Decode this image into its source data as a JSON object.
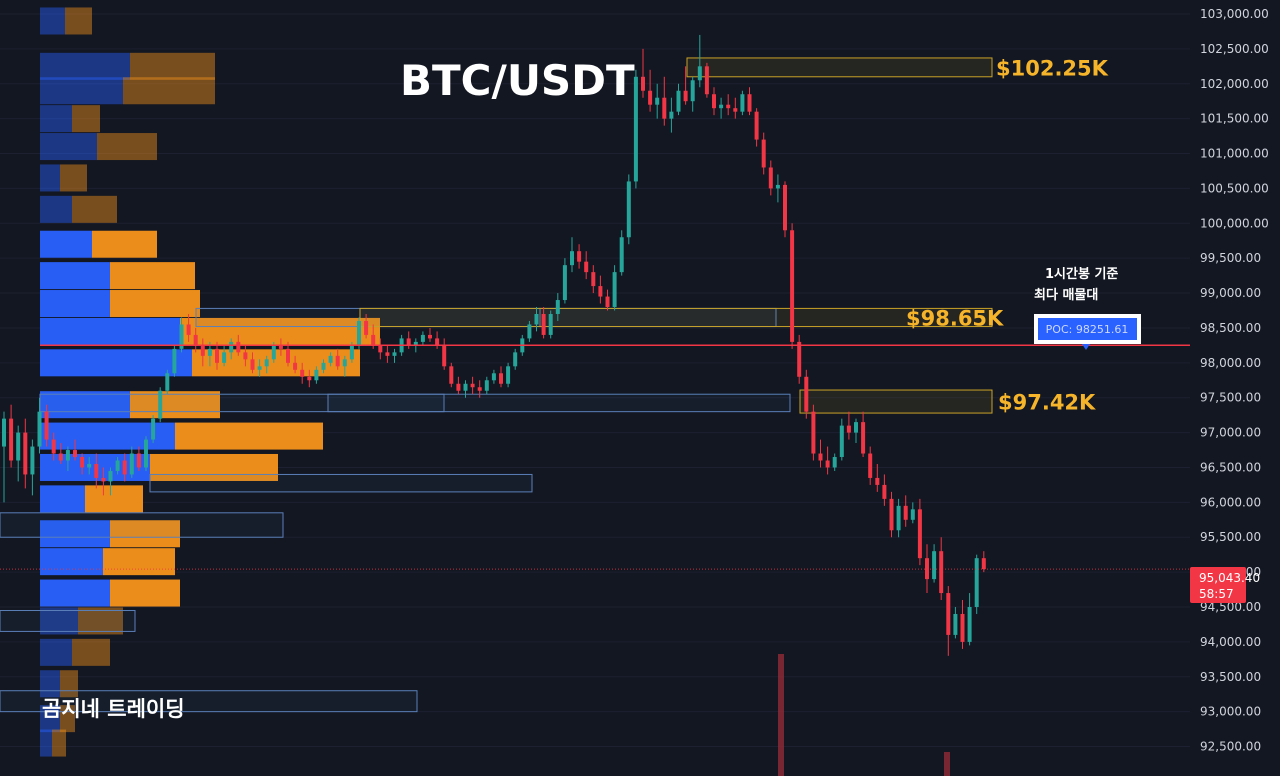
{
  "chart_data": {
    "type": "candlestick",
    "title": "BTC/USDT",
    "watermark": "곰지네 트레이딩",
    "price_axis": {
      "ylim": [
        92350,
        103000
      ],
      "ticks": [
        103000,
        102500,
        102000,
        101500,
        101000,
        100500,
        100000,
        99500,
        99000,
        98500,
        98000,
        97500,
        97000,
        96500,
        96000,
        95500,
        95000,
        94500,
        94000,
        93500,
        93000,
        92500
      ],
      "tick_labels": [
        "103,000.00",
        "102,500.00",
        "102,000.00",
        "101,500.00",
        "101,000.00",
        "100,500.00",
        "100,000.00",
        "99,500.00",
        "99,000.00",
        "98,500.00",
        "98,000.00",
        "97,500.00",
        "97,000.00",
        "96,500.00",
        "96,000.00",
        "95,500.00",
        "95,000.00",
        "94,500.00",
        "94,000.00",
        "93,500.00",
        "93,000.00",
        "92,500.00"
      ]
    },
    "last_price": {
      "value": 95043.4,
      "label": "95,043.40",
      "countdown": "58:57",
      "color": "#f23645"
    },
    "poc": {
      "value": 98251.61,
      "label": "POC: 98251.61",
      "note_line1": "1시간봉 기준",
      "note_line2": "최다 매물대",
      "color": "#f23645"
    },
    "price_levels": [
      {
        "name": "resistance-top",
        "label": "$102.25K",
        "low": 102100,
        "high": 102370
      },
      {
        "name": "resistance-mid",
        "label": "$98.65K",
        "low": 98520,
        "high": 98780
      },
      {
        "name": "support",
        "label": "$97.42K",
        "low": 97280,
        "high": 97610
      }
    ],
    "colors": {
      "up": "#26a69a",
      "down": "#f23645",
      "level_box": "#c9a227",
      "vp_up": "#2962ff",
      "vp_down": "#f7931a",
      "zone_box": "#5a7fb8",
      "poc_label_bg": "#2962ff"
    },
    "candles": [
      [
        96800,
        97300,
        96000,
        97200
      ],
      [
        97200,
        97400,
        96500,
        96600
      ],
      [
        96600,
        97100,
        96300,
        97000
      ],
      [
        97000,
        97200,
        96200,
        96400
      ],
      [
        96400,
        96900,
        96100,
        96800
      ],
      [
        96800,
        97500,
        96700,
        97300
      ],
      [
        97300,
        97400,
        96800,
        96900
      ],
      [
        96900,
        97000,
        96600,
        96700
      ],
      [
        96700,
        96850,
        96550,
        96600
      ],
      [
        96600,
        96800,
        96450,
        96750
      ],
      [
        96750,
        96900,
        96600,
        96650
      ],
      [
        96650,
        96700,
        96400,
        96500
      ],
      [
        96500,
        96650,
        96400,
        96550
      ],
      [
        96550,
        96700,
        96200,
        96350
      ],
      [
        96350,
        96500,
        96100,
        96300
      ],
      [
        96300,
        96500,
        96100,
        96450
      ],
      [
        96450,
        96650,
        96400,
        96600
      ],
      [
        96600,
        96700,
        96300,
        96400
      ],
      [
        96400,
        96800,
        96350,
        96700
      ],
      [
        96700,
        96800,
        96450,
        96500
      ],
      [
        96500,
        96950,
        96450,
        96900
      ],
      [
        96900,
        97250,
        96850,
        97200
      ],
      [
        97200,
        97650,
        97150,
        97600
      ],
      [
        97600,
        97900,
        97550,
        97850
      ],
      [
        97850,
        98250,
        97800,
        98200
      ],
      [
        98200,
        98650,
        98150,
        98550
      ],
      [
        98550,
        98700,
        98300,
        98400
      ],
      [
        98400,
        98500,
        98150,
        98250
      ],
      [
        98250,
        98350,
        97950,
        98100
      ],
      [
        98100,
        98300,
        97950,
        98200
      ],
      [
        98200,
        98300,
        97900,
        98000
      ],
      [
        98000,
        98250,
        97950,
        98150
      ],
      [
        98150,
        98350,
        98050,
        98300
      ],
      [
        98300,
        98400,
        98100,
        98150
      ],
      [
        98150,
        98250,
        97950,
        98050
      ],
      [
        98050,
        98150,
        97850,
        97900
      ],
      [
        97900,
        98050,
        97800,
        97950
      ],
      [
        97950,
        98100,
        97850,
        98050
      ],
      [
        98050,
        98300,
        98000,
        98250
      ],
      [
        98250,
        98350,
        98100,
        98200
      ],
      [
        98200,
        98300,
        97950,
        98000
      ],
      [
        98000,
        98100,
        97850,
        97900
      ],
      [
        97900,
        98000,
        97700,
        97800
      ],
      [
        97800,
        97900,
        97650,
        97750
      ],
      [
        97750,
        97950,
        97700,
        97900
      ],
      [
        97900,
        98050,
        97850,
        98000
      ],
      [
        98000,
        98150,
        97950,
        98100
      ],
      [
        98100,
        98200,
        97900,
        97950
      ],
      [
        97950,
        98100,
        97800,
        98050
      ],
      [
        98050,
        98300,
        98000,
        98250
      ],
      [
        98250,
        98650,
        98200,
        98600
      ],
      [
        98600,
        98700,
        98350,
        98400
      ],
      [
        98400,
        98550,
        98200,
        98250
      ],
      [
        98250,
        98350,
        98050,
        98150
      ],
      [
        98150,
        98250,
        98000,
        98100
      ],
      [
        98100,
        98200,
        98000,
        98150
      ],
      [
        98150,
        98400,
        98100,
        98350
      ],
      [
        98350,
        98450,
        98200,
        98250
      ],
      [
        98250,
        98350,
        98150,
        98300
      ],
      [
        98300,
        98450,
        98250,
        98400
      ],
      [
        98400,
        98500,
        98300,
        98350
      ],
      [
        98350,
        98450,
        98200,
        98250
      ],
      [
        98250,
        98350,
        97900,
        97950
      ],
      [
        97950,
        98000,
        97650,
        97700
      ],
      [
        97700,
        97800,
        97550,
        97600
      ],
      [
        97600,
        97750,
        97500,
        97700
      ],
      [
        97700,
        97800,
        97550,
        97650
      ],
      [
        97650,
        97750,
        97500,
        97600
      ],
      [
        97600,
        97800,
        97550,
        97750
      ],
      [
        97750,
        97900,
        97700,
        97850
      ],
      [
        97850,
        97950,
        97650,
        97700
      ],
      [
        97700,
        98000,
        97650,
        97950
      ],
      [
        97950,
        98200,
        97900,
        98150
      ],
      [
        98150,
        98400,
        98100,
        98350
      ],
      [
        98350,
        98600,
        98300,
        98550
      ],
      [
        98550,
        98800,
        98450,
        98700
      ],
      [
        98700,
        98800,
        98350,
        98400
      ],
      [
        98400,
        98750,
        98350,
        98700
      ],
      [
        98700,
        99000,
        98600,
        98900
      ],
      [
        98900,
        99500,
        98850,
        99400
      ],
      [
        99400,
        99800,
        99300,
        99600
      ],
      [
        99600,
        99700,
        99350,
        99450
      ],
      [
        99450,
        99600,
        99200,
        99300
      ],
      [
        99300,
        99400,
        99000,
        99100
      ],
      [
        99100,
        99250,
        98850,
        98950
      ],
      [
        98950,
        99050,
        98750,
        98800
      ],
      [
        98800,
        99400,
        98750,
        99300
      ],
      [
        99300,
        99900,
        99250,
        99800
      ],
      [
        99800,
        100700,
        99700,
        100600
      ],
      [
        100600,
        102200,
        100500,
        102100
      ],
      [
        102100,
        102500,
        101800,
        101900
      ],
      [
        101900,
        102200,
        101600,
        101700
      ],
      [
        101700,
        102000,
        101500,
        101800
      ],
      [
        101800,
        102100,
        101400,
        101500
      ],
      [
        101500,
        101800,
        101300,
        101600
      ],
      [
        101600,
        102000,
        101550,
        101900
      ],
      [
        101900,
        102250,
        101700,
        101750
      ],
      [
        101750,
        102100,
        101600,
        102050
      ],
      [
        102050,
        102700,
        101950,
        102250
      ],
      [
        102250,
        102300,
        101800,
        101850
      ],
      [
        101850,
        101950,
        101550,
        101650
      ],
      [
        101650,
        101800,
        101500,
        101700
      ],
      [
        101700,
        101850,
        101550,
        101650
      ],
      [
        101650,
        101800,
        101500,
        101600
      ],
      [
        101600,
        101900,
        101550,
        101850
      ],
      [
        101850,
        101950,
        101550,
        101600
      ],
      [
        101600,
        101650,
        101100,
        101200
      ],
      [
        101200,
        101300,
        100700,
        100800
      ],
      [
        100800,
        100900,
        100400,
        100500
      ],
      [
        100500,
        100700,
        100300,
        100550
      ],
      [
        100550,
        100600,
        99800,
        99900
      ],
      [
        99900,
        100000,
        98200,
        98300
      ],
      [
        98300,
        98400,
        97700,
        97800
      ],
      [
        97800,
        97900,
        97200,
        97300
      ],
      [
        97300,
        97400,
        96600,
        96700
      ],
      [
        96700,
        96900,
        96500,
        96600
      ],
      [
        96600,
        96800,
        96400,
        96500
      ],
      [
        96500,
        96700,
        96450,
        96650
      ],
      [
        96650,
        97200,
        96600,
        97100
      ],
      [
        97100,
        97300,
        96900,
        97000
      ],
      [
        97000,
        97200,
        96850,
        97150
      ],
      [
        97150,
        97300,
        96650,
        96700
      ],
      [
        96700,
        96800,
        96250,
        96350
      ],
      [
        96350,
        96550,
        96150,
        96250
      ],
      [
        96250,
        96400,
        95950,
        96050
      ],
      [
        96050,
        96150,
        95500,
        95600
      ],
      [
        95600,
        96050,
        95500,
        95950
      ],
      [
        95950,
        96100,
        95650,
        95750
      ],
      [
        95750,
        96000,
        95700,
        95900
      ],
      [
        95900,
        96050,
        95100,
        95200
      ],
      [
        95200,
        95400,
        94700,
        94900
      ],
      [
        94900,
        95400,
        94850,
        95300
      ],
      [
        95300,
        95500,
        94600,
        94700
      ],
      [
        94700,
        94800,
        93800,
        94100
      ],
      [
        94100,
        94500,
        94050,
        94400
      ],
      [
        94400,
        94600,
        93900,
        94000
      ],
      [
        94000,
        94700,
        93950,
        94500
      ],
      [
        94500,
        95250,
        94400,
        95200
      ],
      [
        95200,
        95300,
        95000,
        95043.4
      ]
    ],
    "volume_profile": [
      {
        "price": 102900,
        "up": 25,
        "down": 27,
        "dim": true
      },
      {
        "price": 102250,
        "up": 90,
        "down": 85,
        "dim": true
      },
      {
        "price": 101900,
        "up": 83,
        "down": 92,
        "dim": true
      },
      {
        "price": 101500,
        "up": 32,
        "down": 28,
        "dim": true
      },
      {
        "price": 101100,
        "up": 57,
        "down": 60,
        "dim": true
      },
      {
        "price": 100650,
        "up": 20,
        "down": 27,
        "dim": true
      },
      {
        "price": 100200,
        "up": 32,
        "down": 45,
        "dim": true
      },
      {
        "price": 99700,
        "up": 52,
        "down": 65,
        "dim": false
      },
      {
        "price": 99250,
        "up": 70,
        "down": 85,
        "dim": false
      },
      {
        "price": 98850,
        "up": 70,
        "down": 90,
        "dim": false
      },
      {
        "price": 98450,
        "up": 140,
        "down": 200,
        "dim": false
      },
      {
        "price": 98000,
        "up": 152,
        "down": 168,
        "dim": false
      },
      {
        "price": 97400,
        "up": 90,
        "down": 90,
        "dim": false
      },
      {
        "price": 96950,
        "up": 135,
        "down": 148,
        "dim": false
      },
      {
        "price": 96500,
        "up": 110,
        "down": 128,
        "dim": false
      },
      {
        "price": 96050,
        "up": 45,
        "down": 58,
        "dim": false
      },
      {
        "price": 95550,
        "up": 70,
        "down": 70,
        "dim": false
      },
      {
        "price": 95150,
        "up": 63,
        "down": 72,
        "dim": false
      },
      {
        "price": 94700,
        "up": 70,
        "down": 70,
        "dim": false
      },
      {
        "price": 94300,
        "up": 38,
        "down": 45,
        "dim": true
      },
      {
        "price": 93850,
        "up": 32,
        "down": 38,
        "dim": true
      },
      {
        "price": 93400,
        "up": 20,
        "down": 18,
        "dim": true
      },
      {
        "price": 92900,
        "up": 20,
        "down": 15,
        "dim": true
      },
      {
        "price": 92550,
        "up": 12,
        "down": 14,
        "dim": true
      }
    ],
    "zones": [
      {
        "high": 97550,
        "low": 97300,
        "from": 40,
        "to": 444
      },
      {
        "high": 97550,
        "low": 97300,
        "from": 328,
        "to": 790
      },
      {
        "high": 98780,
        "low": 98520,
        "from": 540,
        "to": 776
      },
      {
        "high": 98780,
        "low": 98520,
        "from": 196,
        "to": 540
      },
      {
        "high": 96400,
        "low": 96150,
        "from": 150,
        "to": 532
      },
      {
        "high": 95850,
        "low": 95500,
        "from": 0,
        "to": 283
      },
      {
        "high": 94450,
        "low": 94150,
        "from": 0,
        "to": 135
      },
      {
        "high": 93300,
        "low": 93000,
        "from": 0,
        "to": 417
      }
    ]
  }
}
